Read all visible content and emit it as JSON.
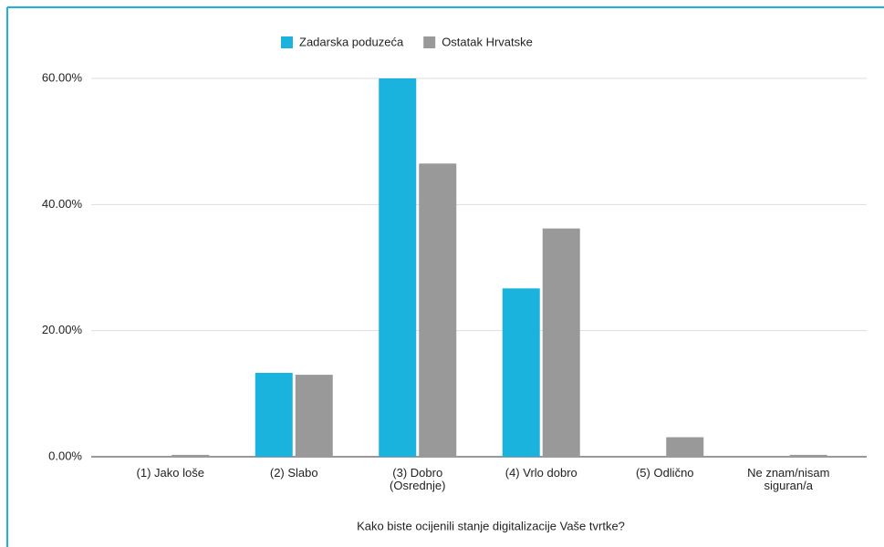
{
  "chart_data": {
    "type": "bar",
    "x_label": "Kako biste ocijenili stanje digitalizacije Vaše tvrtke?",
    "categories": [
      "(1) Jako loše",
      "(2) Slabo",
      "(3) Dobro (Osrednje)",
      "(4) Vrlo dobro",
      "(5) Odlično",
      "Ne znam/nisam siguran/a"
    ],
    "series": [
      {
        "name": "Zadarska poduzeća",
        "color": "#1ab3dd",
        "values": [
          0,
          13.3,
          60,
          26.7,
          0,
          0
        ]
      },
      {
        "name": "Ostatak Hrvatske",
        "color": "#999999",
        "values": [
          0.3,
          13.0,
          46.5,
          36.2,
          3.1,
          0.3
        ]
      }
    ],
    "ylim": [
      0,
      60
    ],
    "yticks": [
      {
        "value": 0,
        "label": "0.00%"
      },
      {
        "value": 20,
        "label": "20.00%"
      },
      {
        "value": 40,
        "label": "40.00%"
      },
      {
        "value": 60,
        "label": "60.00%"
      }
    ],
    "grid": true,
    "legend": "top"
  }
}
